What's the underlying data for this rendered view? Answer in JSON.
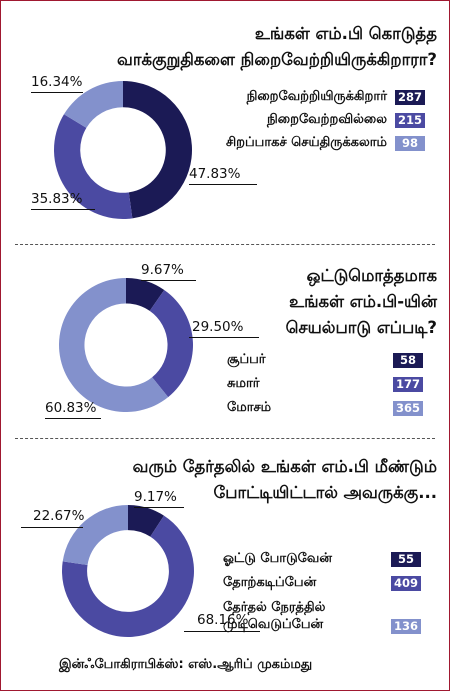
{
  "colors": {
    "dark": "#1b1a55",
    "mid": "#4b4aa2",
    "light": "#8391cc",
    "divider": "#555555",
    "border": "#a01830"
  },
  "chart_data": [
    {
      "type": "pie",
      "title_lines": [
        "உங்கள் எம்.பி கொடுத்த",
        "வாக்குறுதிகளை நிறைவேற்றியிருக்கிறாரா?"
      ],
      "categories": [
        "நிறைவேற்றியிருக்கிறார்",
        "நிறைவேற்றவில்லை",
        "சிறப்பாகச் செய்திருக்கலாம்"
      ],
      "values": [
        287,
        215,
        98
      ],
      "percent_labels": [
        "47.83%",
        "35.83%",
        "16.34%"
      ],
      "legend_placement": "right"
    },
    {
      "type": "pie",
      "title_lines": [
        "ஒட்டுமொத்தமாக",
        "உங்கள் எம்.பி-யின்",
        "செயல்பாடு எப்படி?"
      ],
      "categories": [
        "சூப்பர்",
        "சுமார்",
        "மோசம்"
      ],
      "values": [
        58,
        177,
        365
      ],
      "percent_labels": [
        "9.67%",
        "29.50%",
        "60.83%"
      ],
      "legend_placement": "right"
    },
    {
      "type": "pie",
      "title_lines": [
        "வரும் தேர்தலில் உங்கள் எம்.பி மீண்டும்",
        "போட்டியிட்டால் அவருக்கு..."
      ],
      "categories": [
        "ஓட்டு போடுவேன்",
        "தோற்கடிப்பேன்",
        "தேர்தல் நேரத்தில் முடிவெடுப்பேன்"
      ],
      "values": [
        55,
        409,
        136
      ],
      "percent_labels": [
        "9.17%",
        "68.16%",
        "22.67%"
      ],
      "legend_placement": "right"
    }
  ],
  "credit": "இன்ஃபோகிராபிக்ஸ்: எஸ்.ஆரிப் முகம்மது"
}
